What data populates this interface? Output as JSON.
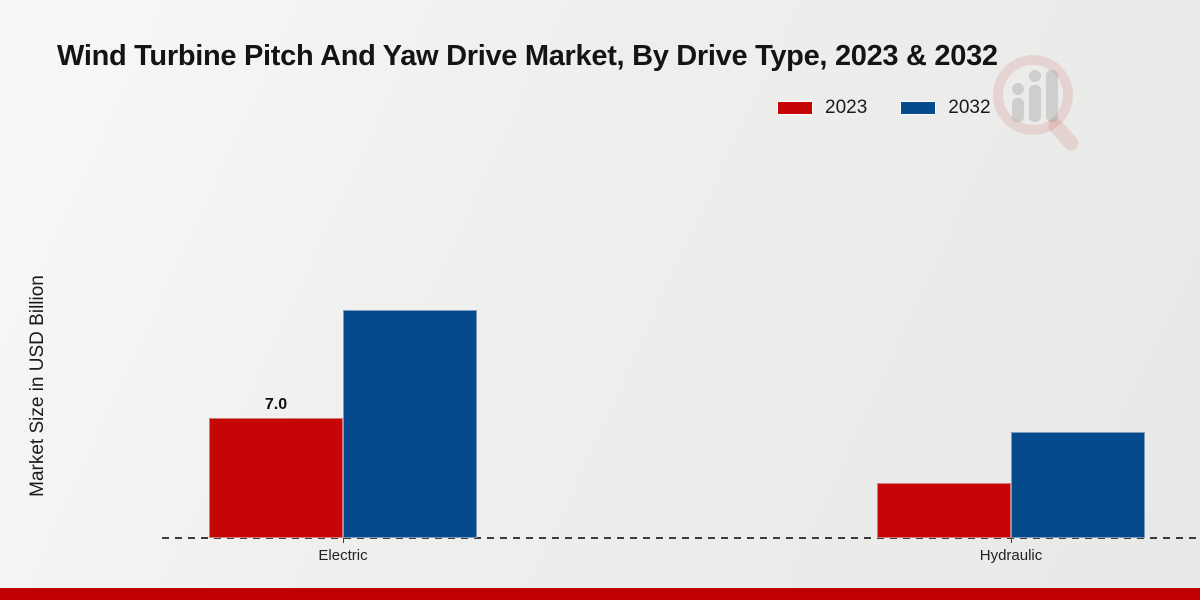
{
  "title": "Wind Turbine Pitch And Yaw Drive Market, By Drive Type, 2023 & 2032",
  "ylabel": "Market Size in USD Billion",
  "legend": [
    {
      "label": "2023",
      "color": "#c60606"
    },
    {
      "label": "2032",
      "color": "#054a8c"
    }
  ],
  "colors": {
    "bar_2023": "#c60606",
    "bar_2032": "#054a8c",
    "footer_strip": "#c00000",
    "baseline": "#3c3c3c",
    "background": "#ededec"
  },
  "chart_data": {
    "type": "bar",
    "categories": [
      "Electric",
      "Hydraulic"
    ],
    "series": [
      {
        "name": "2023",
        "color": "#c60606",
        "values": [
          7.0,
          3.2
        ],
        "labels": [
          "7.0",
          ""
        ]
      },
      {
        "name": "2032",
        "color": "#054a8c",
        "values": [
          13.3,
          6.2
        ],
        "labels": [
          "",
          ""
        ]
      }
    ],
    "title": "Wind Turbine Pitch And Yaw Drive Market, By Drive Type, 2023 & 2032",
    "xlabel": "",
    "ylabel": "Market Size in USD Billion",
    "ylim": [
      0,
      14
    ],
    "grid": false,
    "legend_position": "top-right",
    "baseline_style": "dashed"
  }
}
